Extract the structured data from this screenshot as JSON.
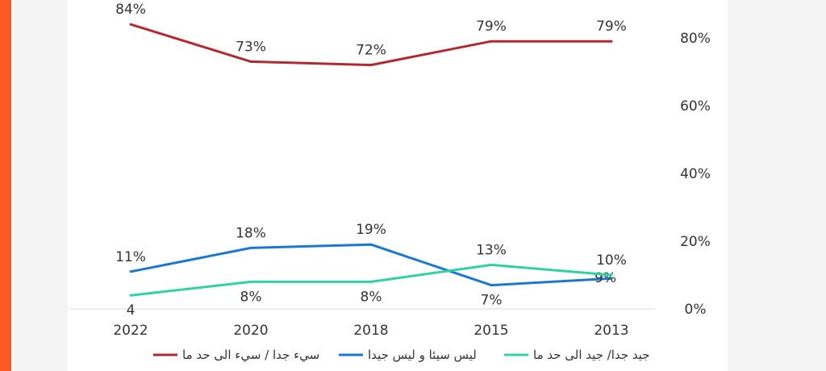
{
  "page": {
    "accent_color": "#ff5722",
    "background_color": "#f4f4f4",
    "card_color": "#ffffff"
  },
  "chart_data": {
    "type": "line",
    "title": "",
    "xlabel": "",
    "ylabel": "",
    "categories": [
      "2022",
      "2020",
      "2018",
      "2015",
      "2013"
    ],
    "ylim": [
      0,
      80
    ],
    "y_ticks": [
      "0%",
      "20%",
      "40%",
      "60%",
      "80%"
    ],
    "y_axis_position": "right",
    "grid": false,
    "legend_position": "bottom",
    "series": [
      {
        "name": "سيء جدا / سيء الى حد ما",
        "color": "#b22a2f",
        "values": [
          84,
          73,
          72,
          79,
          79
        ],
        "labels": [
          "84%",
          "73%",
          "72%",
          "79%",
          "79%"
        ],
        "label_position": [
          "above",
          "above",
          "above",
          "above",
          "above"
        ]
      },
      {
        "name": "ليس سيئا و ليس جيدا",
        "color": "#1a78d3",
        "values": [
          11,
          18,
          19,
          7,
          9
        ],
        "labels": [
          "11%",
          "18%",
          "19%",
          "7%",
          "9%"
        ],
        "label_position": [
          "above",
          "above",
          "above",
          "below",
          "right"
        ]
      },
      {
        "name": "جيد جدا/ جيد الى حد ما",
        "color": "#2fd2a0",
        "values": [
          4,
          8,
          8,
          13,
          10
        ],
        "labels": [
          "4",
          "8%",
          "8%",
          "13%",
          "10%"
        ],
        "label_position": [
          "below",
          "below",
          "below",
          "above",
          "above"
        ]
      }
    ]
  }
}
